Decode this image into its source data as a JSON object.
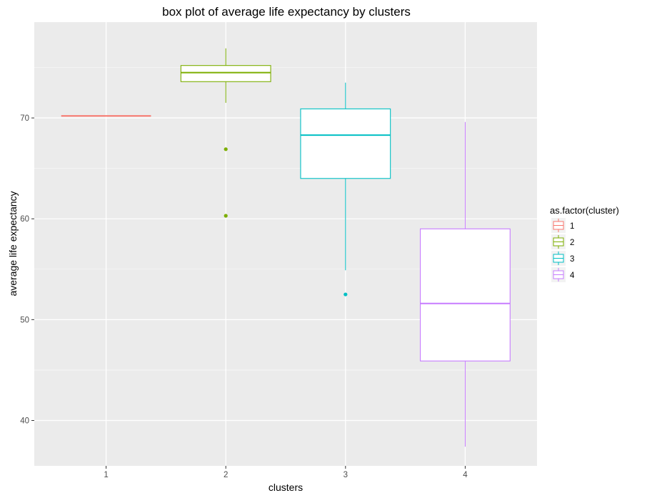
{
  "chart_data": {
    "type": "boxplot",
    "title": "box plot of average life expectancy by clusters",
    "xlabel": "clusters",
    "ylabel": "average life expectancy",
    "categories": [
      "1",
      "2",
      "3",
      "4"
    ],
    "ylim": [
      35.5,
      79.5
    ],
    "y_ticks": [
      40,
      50,
      60,
      70
    ],
    "grid": true,
    "legend": {
      "title": "as.factor(cluster)",
      "position": "right",
      "items": [
        "1",
        "2",
        "3",
        "4"
      ]
    },
    "series": [
      {
        "category": "1",
        "color": "#F8766D",
        "whisker_low": 70.2,
        "q1": 70.2,
        "median": 70.2,
        "q3": 70.2,
        "whisker_high": 70.2,
        "outliers": []
      },
      {
        "category": "2",
        "color": "#7CAE00",
        "whisker_low": 71.5,
        "q1": 73.6,
        "median": 74.5,
        "q3": 75.2,
        "whisker_high": 76.9,
        "outliers": [
          66.9,
          60.3
        ]
      },
      {
        "category": "3",
        "color": "#00BFC4",
        "whisker_low": 54.9,
        "q1": 64.0,
        "median": 68.3,
        "q3": 70.9,
        "whisker_high": 73.5,
        "outliers": [
          52.5
        ]
      },
      {
        "category": "4",
        "color": "#C77CFF",
        "whisker_low": 37.4,
        "q1": 45.9,
        "median": 51.6,
        "q3": 59.0,
        "whisker_high": 69.6,
        "outliers": []
      }
    ]
  }
}
